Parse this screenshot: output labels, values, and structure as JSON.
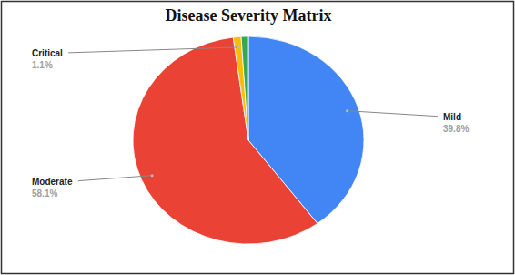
{
  "chart_data": {
    "type": "pie",
    "title": "Disease Severity Matrix",
    "categories": [
      "Mild",
      "Moderate",
      "Critical",
      null
    ],
    "values": [
      39.8,
      58.1,
      1.1,
      1.0
    ],
    "value_labels": [
      "39.8%",
      "58.1%",
      "1.1%",
      null
    ],
    "colors": [
      "#4285f4",
      "#ea4335",
      "#fbbc04",
      "#34a853"
    ],
    "data_labels": true
  }
}
